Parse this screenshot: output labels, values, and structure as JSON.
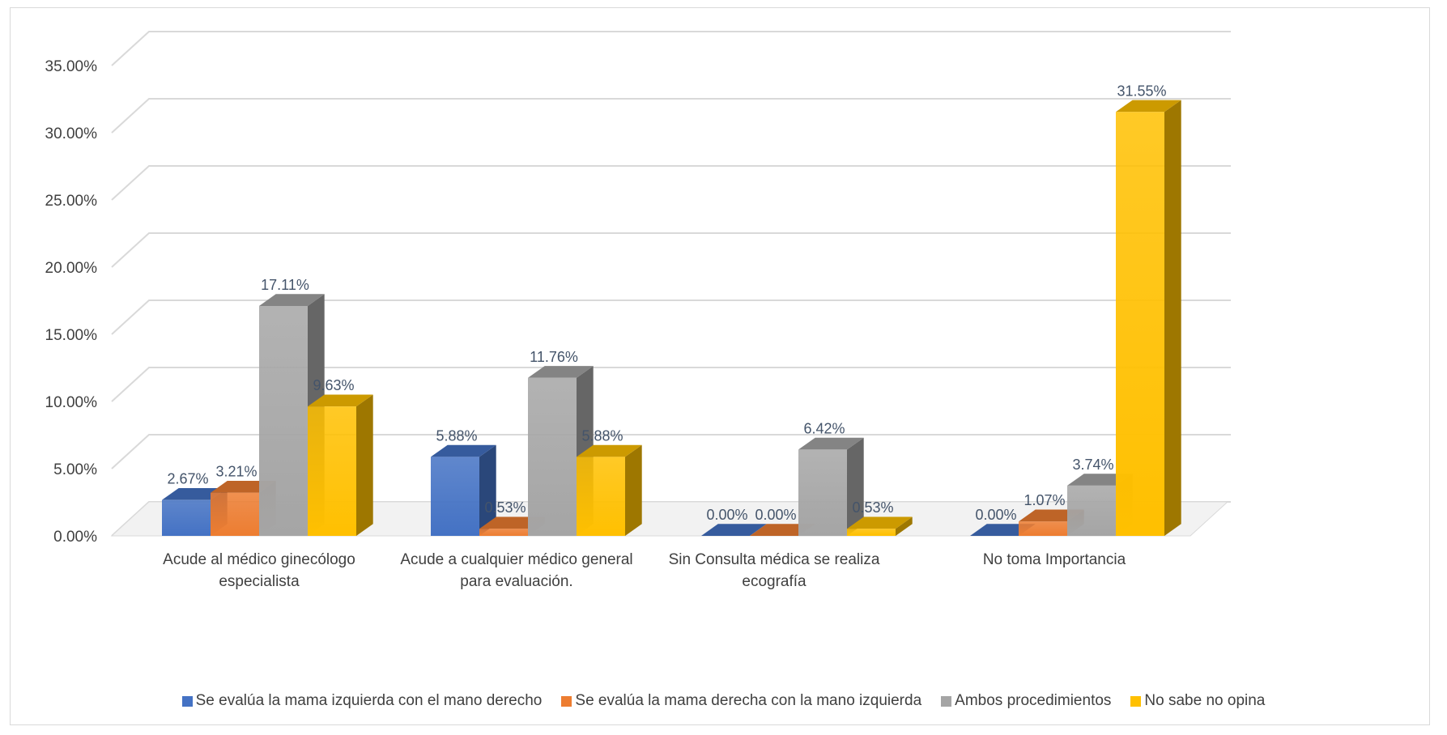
{
  "chart_data": {
    "type": "bar",
    "style": "3d-clustered-column",
    "title": "",
    "xlabel": "",
    "ylabel": "",
    "ylim": [
      0,
      35
    ],
    "y_ticks": [
      "0.00%",
      "5.00%",
      "10.00%",
      "15.00%",
      "20.00%",
      "25.00%",
      "30.00%",
      "35.00%"
    ],
    "grid": true,
    "legend_position": "bottom",
    "categories": [
      "Acude al médico ginecólogo especialista",
      "Acude a cualquier médico general para evaluación.",
      "Sin Consulta médica se realiza ecografía",
      "No toma Importancia"
    ],
    "series": [
      {
        "name": "Se evalúa la mama izquierda con el mano derecho",
        "color": "#4472c4",
        "values": [
          2.67,
          5.88,
          0.0,
          0.0
        ],
        "labels": [
          "2.67%",
          "5.88%",
          "0.00%",
          "0.00%"
        ]
      },
      {
        "name": "Se evalúa la mama derecha con la mano izquierda",
        "color": "#ed7d31",
        "values": [
          3.21,
          0.53,
          0.0,
          1.07
        ],
        "labels": [
          "3.21%",
          "0.53%",
          "0.00%",
          "1.07%"
        ]
      },
      {
        "name": "Ambos procedimientos",
        "color": "#a5a5a5",
        "values": [
          17.11,
          11.76,
          6.42,
          3.74
        ],
        "labels": [
          "17.11%",
          "11.76%",
          "6.42%",
          "3.74%"
        ]
      },
      {
        "name": "No sabe no opina",
        "color": "#ffc000",
        "values": [
          9.63,
          5.88,
          0.53,
          31.55
        ],
        "labels": [
          "9.63%",
          "5.88%",
          "0.53%",
          "31.55%"
        ]
      }
    ]
  }
}
